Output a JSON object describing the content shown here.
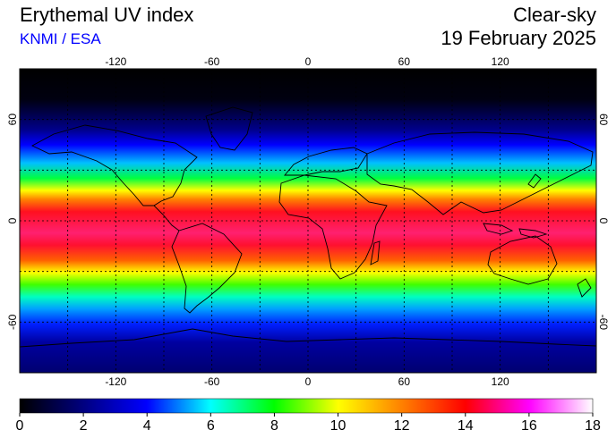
{
  "header": {
    "title": "Erythemal UV index",
    "source": "KNMI / ESA",
    "condition": "Clear-sky",
    "date": "19 February 2025"
  },
  "map": {
    "projection": "equirectangular",
    "lon_range": [
      -180,
      180
    ],
    "lat_range": [
      -90,
      90
    ],
    "grid_step_deg": 30,
    "lon_ticks": [
      "-120",
      "-60",
      "0",
      "60",
      "120"
    ],
    "lat_ticks": [
      "60",
      "0",
      "-60"
    ],
    "lon_tick_values": [
      -120,
      -60,
      0,
      60,
      120
    ],
    "lat_tick_values": [
      60,
      0,
      -60
    ],
    "grid": "dotted",
    "coastlines": true,
    "peak_uv_latitude": -10
  },
  "colorbar": {
    "min": 0,
    "max": 18,
    "tick_labels": [
      "0",
      "2",
      "4",
      "6",
      "8",
      "10",
      "12",
      "14",
      "16",
      "18"
    ],
    "colors": [
      "#000000",
      "#000080",
      "#0000ff",
      "#00ffff",
      "#00ff00",
      "#ffff00",
      "#ff8000",
      "#ff0000",
      "#ff00ff",
      "#ffffff"
    ]
  }
}
